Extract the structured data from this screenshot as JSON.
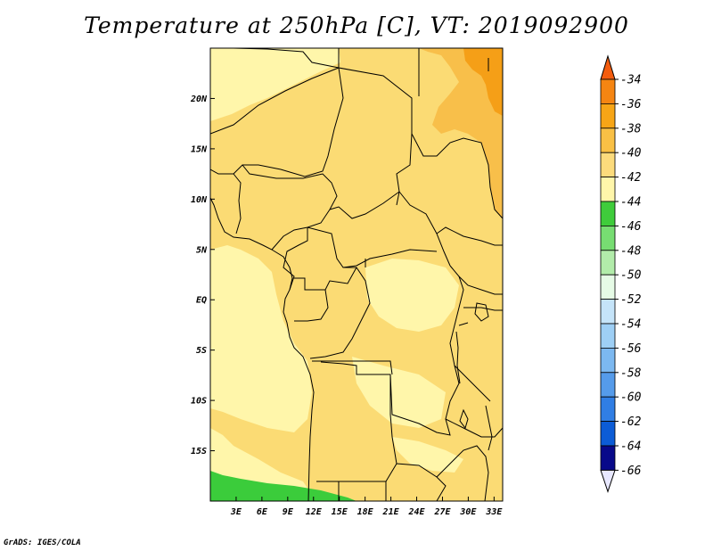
{
  "title": "Temperature at 250hPa [C], VT: 2019092900",
  "credit": "GrADS: IGES/COLA",
  "map": {
    "lon_range": [
      0,
      34
    ],
    "lat_range": [
      -20,
      25
    ],
    "lat_ticks": [
      {
        "value": 20,
        "label": "20N"
      },
      {
        "value": 15,
        "label": "15N"
      },
      {
        "value": 10,
        "label": "10N"
      },
      {
        "value": 5,
        "label": "5N"
      },
      {
        "value": 0,
        "label": "EQ"
      },
      {
        "value": -5,
        "label": "5S"
      },
      {
        "value": -10,
        "label": "10S"
      },
      {
        "value": -15,
        "label": "15S"
      }
    ],
    "lon_ticks": [
      {
        "value": 3,
        "label": "3E"
      },
      {
        "value": 6,
        "label": "6E"
      },
      {
        "value": 9,
        "label": "9E"
      },
      {
        "value": 12,
        "label": "12E"
      },
      {
        "value": 15,
        "label": "15E"
      },
      {
        "value": 18,
        "label": "18E"
      },
      {
        "value": 21,
        "label": "21E"
      },
      {
        "value": 24,
        "label": "24E"
      },
      {
        "value": 27,
        "label": "27E"
      },
      {
        "value": 30,
        "label": "30E"
      },
      {
        "value": 33,
        "label": "33E"
      }
    ],
    "background_color": "#fff6aa",
    "field_colors": {
      "c40": "#fbdb74",
      "c38": "#f8bf4a",
      "c36": "#f59f17",
      "c44": "#3bcc3b"
    }
  },
  "colorbar": {
    "labels": [
      "-34",
      "-36",
      "-38",
      "-40",
      "-42",
      "-44",
      "-46",
      "-48",
      "-50",
      "-52",
      "-54",
      "-56",
      "-58",
      "-60",
      "-62",
      "-64",
      "-66"
    ],
    "colors": [
      "#f35c0e",
      "#f58512",
      "#f7a516",
      "#f9c045",
      "#fcdb7c",
      "#fff6aa",
      "#3fcc3b",
      "#77dd72",
      "#b2ecaa",
      "#e6fbe6",
      "#c5e4f9",
      "#9ecff5",
      "#7cb8f0",
      "#559bea",
      "#307ee4",
      "#0c5cd6",
      "#08098a",
      "#e8e8ff"
    ]
  }
}
